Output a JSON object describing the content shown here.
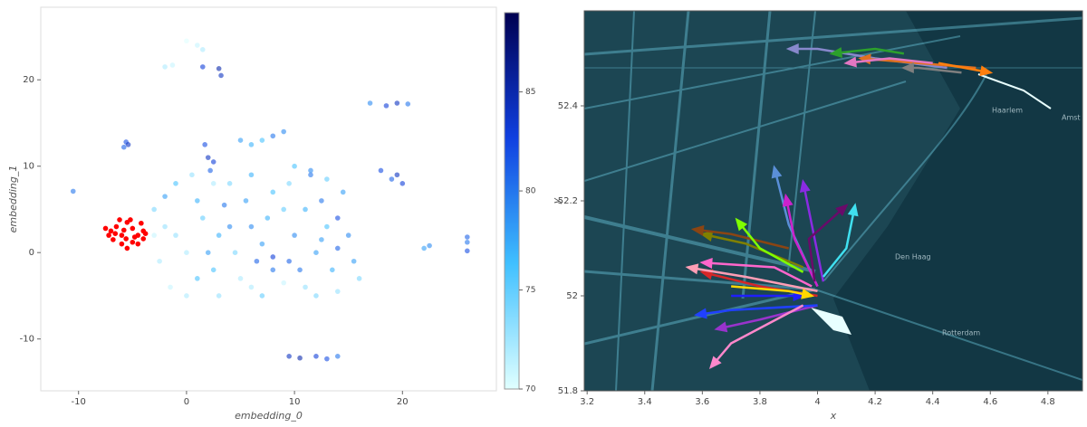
{
  "chart_data": [
    {
      "type": "scatter",
      "xlabel": "embedding_0",
      "ylabel": "embedding_1",
      "xlim": [
        -13.5,
        28.7
      ],
      "ylim": [
        -16,
        28.4
      ],
      "xticks": [
        -10,
        0,
        10,
        20
      ],
      "yticks": [
        -10,
        0,
        10,
        20
      ],
      "colorbar": {
        "clim": [
          70,
          89
        ],
        "ticks": [
          70,
          75,
          80,
          85
        ],
        "colormap": [
          "#e0ffff",
          "#40c0ff",
          "#1040e0",
          "#000050"
        ]
      },
      "series": [
        {
          "x": [
            -10.5,
            -5.6,
            -5.4,
            -5.8,
            1.5,
            3,
            3.2,
            -2,
            -1.3,
            0,
            1,
            1.5,
            17,
            18.5,
            19.5,
            20.5,
            18,
            19.5,
            20,
            19,
            22,
            22.5,
            26,
            26,
            26,
            9.5,
            10.5,
            12,
            13,
            14,
            1.7,
            2,
            2.5,
            2.2,
            8,
            9,
            5,
            6,
            7,
            -3,
            -2,
            -1,
            -2.5,
            -1.5,
            0,
            1,
            2,
            3,
            1.5,
            3.5,
            4.5,
            5,
            6,
            7,
            6.5,
            7.5,
            8,
            9,
            10,
            10.5,
            11,
            12,
            13,
            12.5,
            14,
            15,
            15.5,
            16,
            13.5,
            9,
            8,
            5.5,
            4,
            2.5,
            0.5,
            -1,
            6,
            9.5,
            11.5,
            13,
            14.5,
            10,
            11.5,
            3,
            6,
            7,
            12,
            14,
            -3,
            -2,
            0,
            1,
            4,
            8,
            9.5,
            11,
            12.5,
            14,
            2.5
          ],
          "y": [
            7.1,
            12.8,
            12.5,
            12.2,
            21.5,
            21.3,
            20.5,
            21.5,
            21.7,
            24.5,
            24,
            23.5,
            17.3,
            17,
            17.3,
            17.2,
            9.5,
            9,
            8,
            8.5,
            0.5,
            0.8,
            1.8,
            0.2,
            1.2,
            -12,
            -12.2,
            -12,
            -12.3,
            -12,
            12.5,
            11,
            10.5,
            9.5,
            13.5,
            14,
            13,
            12.5,
            13,
            5,
            6.5,
            2,
            -1,
            -4,
            -5,
            -3,
            0,
            2,
            4,
            5.5,
            0,
            -3,
            3,
            1,
            -1,
            4,
            7,
            5,
            2,
            -2,
            -4,
            0,
            3,
            6,
            4,
            2,
            -1,
            -3,
            -2,
            -3.5,
            -2,
            6,
            8,
            8,
            9,
            8,
            9,
            8,
            9,
            8.5,
            7,
            10,
            9.5,
            -5,
            -4,
            -5,
            -5,
            -4.5,
            2,
            3,
            0,
            6,
            3,
            -0.5,
            -1,
            5,
            1.5,
            0.5,
            -2
          ],
          "values": [
            80,
            82,
            84,
            81,
            83,
            85,
            84,
            72,
            71,
            70,
            71,
            72,
            79,
            83,
            84,
            80,
            82,
            84,
            83,
            81,
            78,
            79,
            81,
            82,
            80,
            84,
            85,
            83,
            82,
            80,
            82,
            84,
            83,
            81,
            80,
            79,
            78,
            77,
            76,
            74,
            78,
            73,
            72,
            71,
            72,
            76,
            78,
            77,
            75,
            80,
            74,
            72,
            79,
            78,
            81,
            77,
            76,
            75,
            79,
            80,
            73,
            78,
            76,
            80,
            82,
            79,
            78,
            74,
            77,
            71,
            80,
            78,
            74,
            72,
            73,
            76,
            77,
            74,
            80,
            75,
            78,
            76,
            79,
            73,
            72,
            75,
            74,
            73,
            71,
            73,
            72,
            77,
            79,
            83,
            81,
            77,
            78,
            81,
            76
          ]
        },
        {
          "color": "#ff0000",
          "x": [
            -7,
            -6.5,
            -6,
            -5.5,
            -5,
            -4.5,
            -4,
            -6.8,
            -6,
            -5,
            -4.5,
            -5.5,
            -7.5,
            -6.2,
            -5.2,
            -4.2,
            -4,
            -6.6,
            -5.8,
            -4.8,
            -3.8,
            -7.2,
            -5.6
          ],
          "y": [
            2.5,
            3,
            2,
            3.5,
            2.8,
            2,
            2.5,
            1.5,
            1,
            1.2,
            1,
            0.5,
            2.8,
            3.8,
            3.8,
            3.4,
            1.6,
            2.2,
            2.6,
            1.8,
            2.2,
            2,
            1.6
          ]
        }
      ]
    },
    {
      "type": "trajectories",
      "xlabel": "x",
      "ylabel": "y",
      "xlim": [
        3.19,
        4.92
      ],
      "ylim": [
        51.8,
        52.6
      ],
      "xticks": [
        3.2,
        3.4,
        3.6,
        3.8,
        4,
        4.2,
        4.4,
        4.6,
        4.8
      ],
      "yticks": [
        51.8,
        52,
        52.2,
        52.4
      ],
      "map_labels": [
        "Haarlem",
        "Amst",
        "Den Haag",
        "Rotterdam"
      ],
      "series": [
        {
          "color": "#8888cc",
          "x": [
            4.45,
            4.2,
            4.0,
            3.9
          ],
          "y": [
            52.48,
            52.5,
            52.52,
            52.52
          ]
        },
        {
          "color": "#e07020",
          "x": [
            4.55,
            4.35,
            4.15
          ],
          "y": [
            52.48,
            52.49,
            52.5
          ]
        },
        {
          "color": "#ff7f0e",
          "x": [
            4.42,
            4.6
          ],
          "y": [
            52.49,
            52.47
          ]
        },
        {
          "color": "#e377c2",
          "x": [
            4.4,
            4.25,
            4.1
          ],
          "y": [
            52.49,
            52.5,
            52.49
          ]
        },
        {
          "color": "#2ca02c",
          "x": [
            4.3,
            4.2,
            4.05
          ],
          "y": [
            52.51,
            52.52,
            52.51
          ]
        },
        {
          "color": "#7f7f7f",
          "x": [
            4.5,
            4.35,
            4.3
          ],
          "y": [
            52.47,
            52.48,
            52.48
          ]
        },
        {
          "color": "#d62728",
          "x": [
            4.0,
            3.8,
            3.6
          ],
          "y": [
            52.0,
            52.02,
            52.05
          ]
        },
        {
          "color": "#ff9eb5",
          "x": [
            4.0,
            3.75,
            3.55
          ],
          "y": [
            52.01,
            52.04,
            52.06
          ]
        },
        {
          "color": "#ff66cc",
          "x": [
            3.98,
            3.85,
            3.6
          ],
          "y": [
            52.02,
            52.06,
            52.07
          ]
        },
        {
          "color": "#5a8fd8",
          "x": [
            4.0,
            3.9,
            3.85
          ],
          "y": [
            52.02,
            52.15,
            52.27
          ]
        },
        {
          "color": "#cc22cc",
          "x": [
            4.0,
            3.92,
            3.89
          ],
          "y": [
            52.02,
            52.12,
            52.21
          ]
        },
        {
          "color": "#8a2be2",
          "x": [
            4.02,
            3.98,
            3.95
          ],
          "y": [
            52.03,
            52.15,
            52.24
          ]
        },
        {
          "color": "#40e0f0",
          "x": [
            4.02,
            4.1,
            4.13
          ],
          "y": [
            52.04,
            52.1,
            52.19
          ]
        },
        {
          "color": "#6a0a6a",
          "x": [
            3.99,
            3.97,
            4.1
          ],
          "y": [
            52.03,
            52.12,
            52.19
          ]
        },
        {
          "color": "#9933cc",
          "x": [
            4.0,
            3.8,
            3.65
          ],
          "y": [
            51.98,
            51.95,
            51.93
          ]
        },
        {
          "color": "#2040ff",
          "x": [
            4.0,
            3.7,
            3.58
          ],
          "y": [
            51.98,
            51.97,
            51.96
          ]
        },
        {
          "color": "#ff88cc",
          "x": [
            3.95,
            3.7,
            3.63
          ],
          "y": [
            51.98,
            51.9,
            51.85
          ]
        },
        {
          "color": "#1f1fff",
          "x": [
            3.7,
            3.85,
            3.95
          ],
          "y": [
            52.0,
            52.0,
            52.0
          ]
        },
        {
          "color": "#ffd700",
          "x": [
            3.7,
            3.9,
            3.98
          ],
          "y": [
            52.02,
            52.01,
            52.0
          ]
        },
        {
          "color": "#808000",
          "x": [
            3.95,
            3.75,
            3.6
          ],
          "y": [
            52.06,
            52.11,
            52.13
          ]
        },
        {
          "color": "#8b4513",
          "x": [
            3.9,
            3.7,
            3.57
          ],
          "y": [
            52.1,
            52.13,
            52.14
          ]
        },
        {
          "color": "#7fff00",
          "x": [
            3.95,
            3.8,
            3.72
          ],
          "y": [
            52.05,
            52.1,
            52.16
          ]
        }
      ]
    }
  ]
}
